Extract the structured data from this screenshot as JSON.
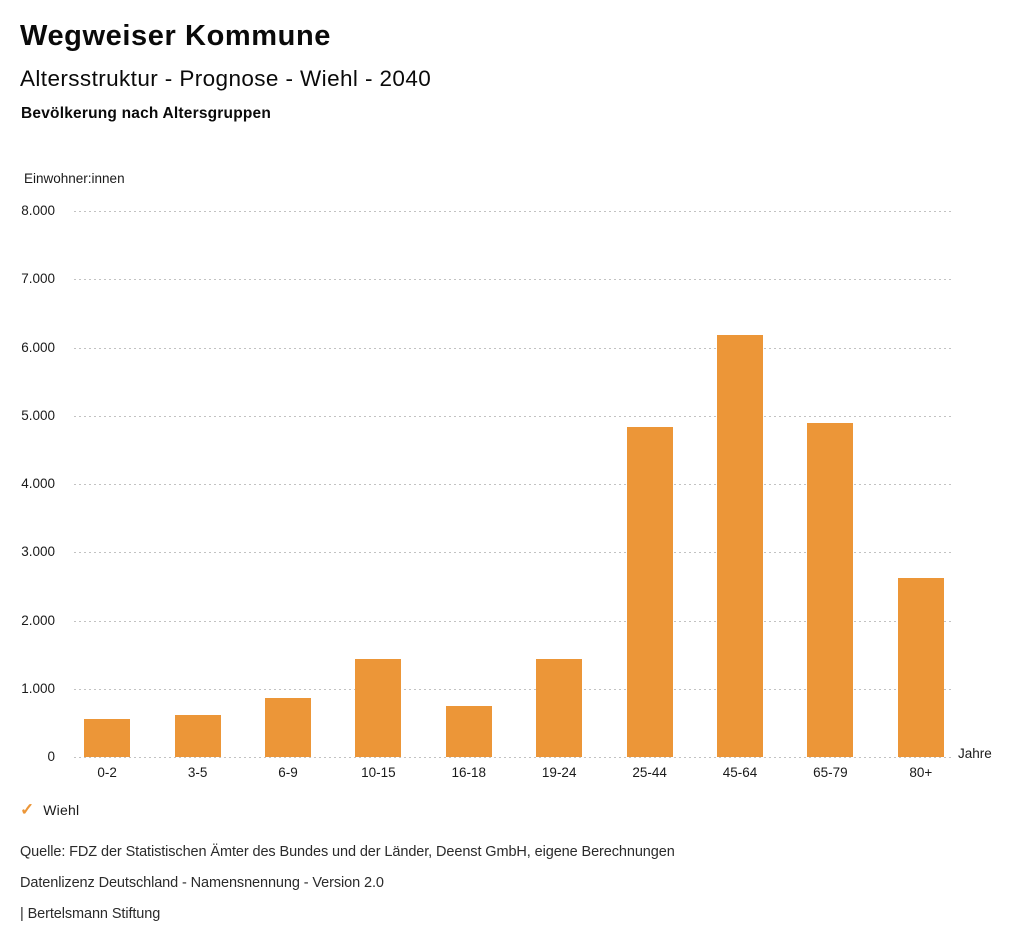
{
  "header": {
    "title": "Wegweiser Kommune",
    "subtitle": "Altersstruktur - Prognose - Wiehl - 2040",
    "chart_heading": "Bevölkerung nach Altersgruppen"
  },
  "chart_data": {
    "type": "bar",
    "title": "Bevölkerung nach Altersgruppen",
    "unit_label": "Einwohner:innen",
    "xlabel": "Jahre",
    "ylabel": "Einwohner:innen",
    "categories": [
      "0-2",
      "3-5",
      "6-9",
      "10-15",
      "16-18",
      "19-24",
      "25-44",
      "45-64",
      "65-79",
      "80+"
    ],
    "series": [
      {
        "name": "Wiehl",
        "values": [
          560,
          620,
          870,
          1430,
          750,
          1430,
          4830,
          6190,
          4890,
          2620
        ]
      }
    ],
    "ylim": [
      0,
      8000
    ],
    "ytick_step": 1000,
    "ytick_labels": [
      "0",
      "1.000",
      "2.000",
      "3.000",
      "4.000",
      "5.000",
      "6.000",
      "7.000",
      "8.000"
    ],
    "grid": "horizontal-dotted",
    "legend_position": "bottom-left",
    "bar_color": "#EC9638",
    "gridline_color": "#c2c2c2"
  },
  "legend": {
    "check_icon": "✓",
    "label": "Wiehl",
    "color": "#EC9638"
  },
  "footer": {
    "lines": [
      "Quelle: FDZ der Statistischen Ämter des Bundes und der Länder, Deenst GmbH, eigene Berechnungen",
      "Datenlizenz Deutschland - Namensnennung - Version 2.0",
      "| Bertelsmann Stiftung"
    ]
  }
}
